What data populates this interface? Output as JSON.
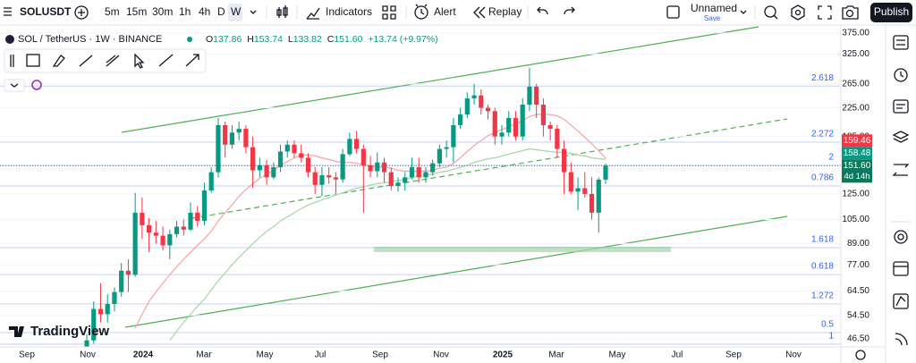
{
  "toolbar": {
    "symbol": "SOLUSDT",
    "intervals": [
      "5m",
      "15m",
      "30m",
      "1h",
      "4h",
      "D",
      "W"
    ],
    "indicators": "Indicators",
    "alert": "Alert",
    "replay": "Replay",
    "layout_name": "Unnamed",
    "save": "Save",
    "publish": "Publish"
  },
  "legend": {
    "title": "SOL / TetherUS · 1W · BINANCE",
    "ohlc": [
      {
        "key": "O",
        "value": "137.86"
      },
      {
        "key": "H",
        "value": "153.74"
      },
      {
        "key": "L",
        "value": "133.82"
      },
      {
        "key": "C",
        "value": "151.60"
      }
    ],
    "change": "+13.74 (+9.97%)"
  },
  "logo": "TradingView",
  "chart_data": {
    "type": "candlestick",
    "open": [
      44,
      46,
      57,
      55,
      59,
      64,
      74,
      72,
      110,
      101,
      96,
      94,
      88,
      95,
      100,
      98,
      110,
      104,
      128,
      145,
      200,
      175,
      190,
      195,
      172,
      147,
      152,
      140,
      150,
      167,
      175,
      165,
      160,
      145,
      133,
      142,
      140,
      138,
      164,
      182,
      170,
      152,
      146,
      155,
      145,
      132,
      135,
      140,
      150,
      140,
      145,
      154,
      170,
      172,
      200,
      215,
      240,
      245,
      225,
      220,
      185,
      190,
      210,
      185,
      230,
      260,
      230,
      200,
      195,
      170,
      145,
      127,
      130,
      125,
      110,
      137.86
    ],
    "high": [
      48,
      60,
      68,
      63,
      66,
      78,
      80,
      126,
      122,
      106,
      104,
      100,
      98,
      104,
      105,
      118,
      115,
      135,
      150,
      210,
      205,
      200,
      205,
      200,
      185,
      160,
      158,
      155,
      175,
      180,
      180,
      175,
      165,
      150,
      150,
      150,
      145,
      170,
      190,
      192,
      175,
      162,
      166,
      160,
      150,
      140,
      145,
      160,
      160,
      150,
      158,
      175,
      180,
      210,
      225,
      250,
      265,
      255,
      230,
      225,
      200,
      220,
      220,
      240,
      295,
      265,
      240,
      205,
      200,
      180,
      155,
      140,
      145,
      140,
      140,
      153.74
    ],
    "low": [
      42,
      45,
      52,
      52,
      56,
      62,
      64,
      71,
      92,
      84,
      89,
      85,
      80,
      93,
      94,
      97,
      100,
      101,
      126,
      140,
      160,
      170,
      180,
      165,
      130,
      140,
      133,
      138,
      145,
      160,
      160,
      155,
      140,
      125,
      123,
      134,
      125,
      135,
      162,
      165,
      110,
      140,
      140,
      135,
      128,
      127,
      128,
      138,
      135,
      135,
      142,
      150,
      160,
      155,
      195,
      210,
      230,
      215,
      208,
      175,
      175,
      185,
      180,
      180,
      220,
      210,
      185,
      180,
      160,
      125,
      125,
      112,
      122,
      105,
      96,
      133.82
    ],
    "close": [
      46,
      57,
      55,
      59,
      64,
      74,
      72,
      110,
      101,
      96,
      94,
      88,
      95,
      100,
      98,
      110,
      104,
      128,
      145,
      200,
      175,
      190,
      195,
      172,
      147,
      152,
      140,
      150,
      167,
      175,
      165,
      160,
      145,
      133,
      142,
      140,
      138,
      164,
      182,
      170,
      152,
      146,
      155,
      145,
      132,
      135,
      140,
      150,
      140,
      145,
      154,
      170,
      172,
      200,
      215,
      240,
      245,
      225,
      220,
      185,
      190,
      210,
      185,
      230,
      260,
      230,
      200,
      195,
      170,
      145,
      127,
      130,
      125,
      110,
      137.86,
      151.6
    ],
    "up_color": "#089981",
    "down_color": "#f23645",
    "moving_averages": [
      {
        "color": "#f7a1a6",
        "values": [
          null,
          null,
          null,
          null,
          null,
          null,
          null,
          50,
          55,
          60,
          64,
          68,
          72,
          76,
          80,
          84,
          88,
          92,
          97,
          104,
          110,
          116,
          123,
          129,
          134,
          139,
          143,
          147,
          152,
          156,
          160,
          163,
          163,
          162,
          160,
          158,
          156,
          155,
          155,
          154,
          153,
          151,
          150,
          150,
          149,
          147,
          146,
          146,
          146,
          146,
          147,
          149,
          150,
          154,
          160,
          167,
          174,
          180,
          186,
          190,
          194,
          198,
          202,
          206,
          212,
          215,
          216,
          215,
          213,
          208,
          200,
          192,
          184,
          176,
          168,
          159.46
        ]
      },
      {
        "color": "#a5d6a7",
        "values": [
          null,
          null,
          null,
          null,
          null,
          null,
          null,
          null,
          null,
          null,
          null,
          null,
          46,
          49,
          52,
          55,
          58,
          61,
          65,
          69,
          73,
          77,
          81,
          85,
          89,
          93,
          97,
          100,
          104,
          107,
          110,
          113,
          116,
          118,
          120,
          122,
          124,
          126,
          128,
          130,
          131,
          133,
          134,
          135,
          136,
          137,
          138,
          140,
          141,
          142,
          143,
          145,
          146,
          148,
          150,
          152,
          155,
          157,
          159,
          160,
          162,
          164,
          166,
          168,
          170,
          169,
          168,
          167,
          166,
          166,
          165,
          163,
          162,
          160,
          159,
          158.48
        ]
      }
    ],
    "x_labels": [
      "Sep",
      "Nov",
      "2024",
      "Mar",
      "May",
      "Jul",
      "Sep",
      "Nov",
      "2025",
      "Mar",
      "May",
      "Jul",
      "Sep",
      "Nov"
    ],
    "ylim": [
      44,
      396
    ],
    "log_scale": true,
    "grid": true,
    "yticks": [
      {
        "value": 375,
        "label": "375.00"
      },
      {
        "value": 325,
        "label": "325.00"
      },
      {
        "value": 265,
        "label": "265.00"
      },
      {
        "value": 225,
        "label": "225.00"
      },
      {
        "value": 185,
        "label": "185.00"
      },
      {
        "value": 125,
        "label": "125.00"
      },
      {
        "value": 105,
        "label": "105.00"
      },
      {
        "value": 89,
        "label": "89.00"
      },
      {
        "value": 77,
        "label": "77.00"
      },
      {
        "value": 64.5,
        "label": "64.50"
      },
      {
        "value": 54.5,
        "label": "54.50"
      },
      {
        "value": 46.5,
        "label": "46.50"
      }
    ],
    "fib_levels": [
      {
        "label": "2.618",
        "value": 261
      },
      {
        "label": "2.272",
        "value": 178
      },
      {
        "label": "2",
        "value": 152
      },
      {
        "label": "0.786",
        "value": 132
      },
      {
        "label": "1.618",
        "value": 86.6
      },
      {
        "label": "0.618",
        "value": 72.1
      },
      {
        "label": "1.272",
        "value": 59
      },
      {
        "label": "0.5",
        "value": 48.5
      },
      {
        "label": "1",
        "value": 44.8
      }
    ],
    "price_tags": [
      {
        "value": 159.46,
        "color": "#f23645"
      },
      {
        "value": 158.48,
        "color": "#089981"
      },
      {
        "value": 151.6,
        "label": "151.60",
        "color": "#0b7a5c",
        "countdown": "4d 14h"
      }
    ]
  }
}
